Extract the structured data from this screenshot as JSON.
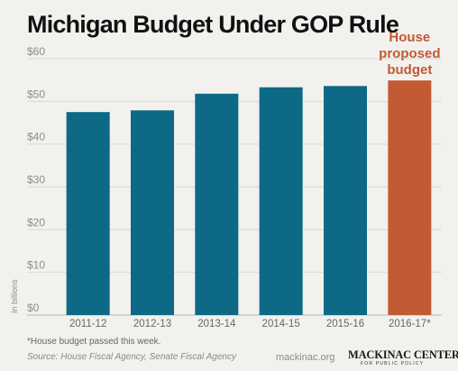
{
  "chart_data": {
    "type": "bar",
    "title": "Michigan Budget Under GOP Rule",
    "ylabel": "In billions",
    "ylim": [
      0,
      60
    ],
    "yticks": [
      0,
      10,
      20,
      30,
      40,
      50,
      60
    ],
    "ytick_labels": [
      "$0",
      "$10",
      "$20",
      "$30",
      "$40",
      "$50",
      "$60"
    ],
    "categories": [
      "2011-12",
      "2012-13",
      "2013-14",
      "2014-15",
      "2015-16",
      "2016-17*"
    ],
    "values": [
      47.5,
      47.9,
      51.8,
      53.3,
      53.6,
      54.9
    ],
    "grid": true,
    "colors": [
      "#0d6985",
      "#0d6985",
      "#0d6985",
      "#0d6985",
      "#0d6985",
      "#c25a33"
    ],
    "annotation": {
      "lines": [
        "House",
        "proposed",
        "budget"
      ],
      "category_index": 5,
      "color": "#c25a33"
    }
  },
  "footer": {
    "footnote": "*House budget passed this week.",
    "source": "Source: House Fiscal Agency, Senate Fiscal Agency",
    "site": "mackinac.org",
    "logo_main": "MACKINAC CENTER",
    "logo_sub": "FOR PUBLIC POLICY"
  }
}
